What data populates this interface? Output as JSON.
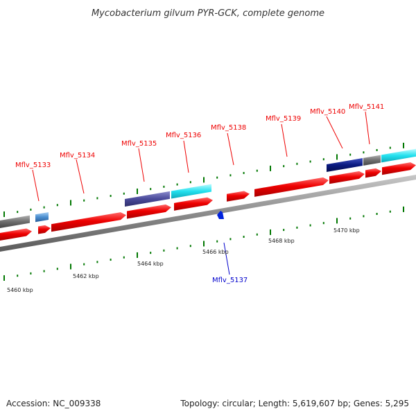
{
  "title": "Mycobacterium gilvum PYR-GCK, complete genome",
  "footer": {
    "accession": "Accession: NC_009338",
    "summary": "Topology: circular; Length: 5,619,607 bp; Genes: 5,295"
  },
  "colors": {
    "forward_gene": "#ee0000",
    "reverse_gene": "#0000cc",
    "tick": "#007700",
    "backbone": "#8c8c8c",
    "cds_cyan": "#22e0ee",
    "cds_slate": "#4a4a9a",
    "cds_navy": "#0a1a80",
    "cds_gray": "#6e6e6e",
    "cds_steel": "#4a8ed0"
  },
  "kbp_labels": [
    "5460 kbp",
    "5462 kbp",
    "5464 kbp",
    "5466 kbp",
    "5468 kbp",
    "5470 kbp"
  ],
  "forward_labels": [
    "Mflv_5133",
    "Mflv_5134",
    "Mflv_5135",
    "Mflv_5136",
    "Mflv_5138",
    "Mflv_5139",
    "Mflv_5140",
    "Mflv_5141"
  ],
  "reverse_labels": [
    "Mflv_5137"
  ]
}
